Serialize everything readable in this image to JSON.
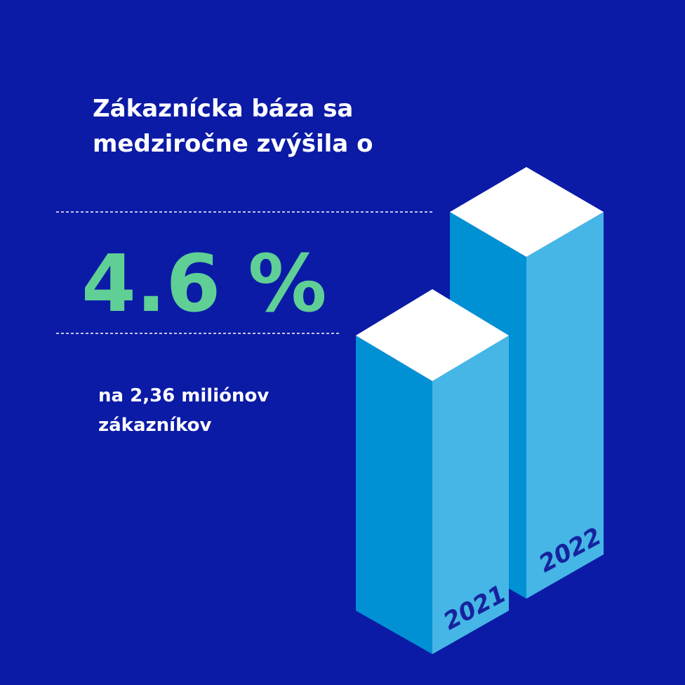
{
  "heading": [
    "Zákaznícka báza sa",
    "medziročne zvýšila o"
  ],
  "highlight": "4.6 %",
  "subtext": [
    "na 2,36 miliónov",
    "zákazníkov"
  ],
  "bars": [
    {
      "label": "2021"
    },
    {
      "label": "2022"
    }
  ]
}
